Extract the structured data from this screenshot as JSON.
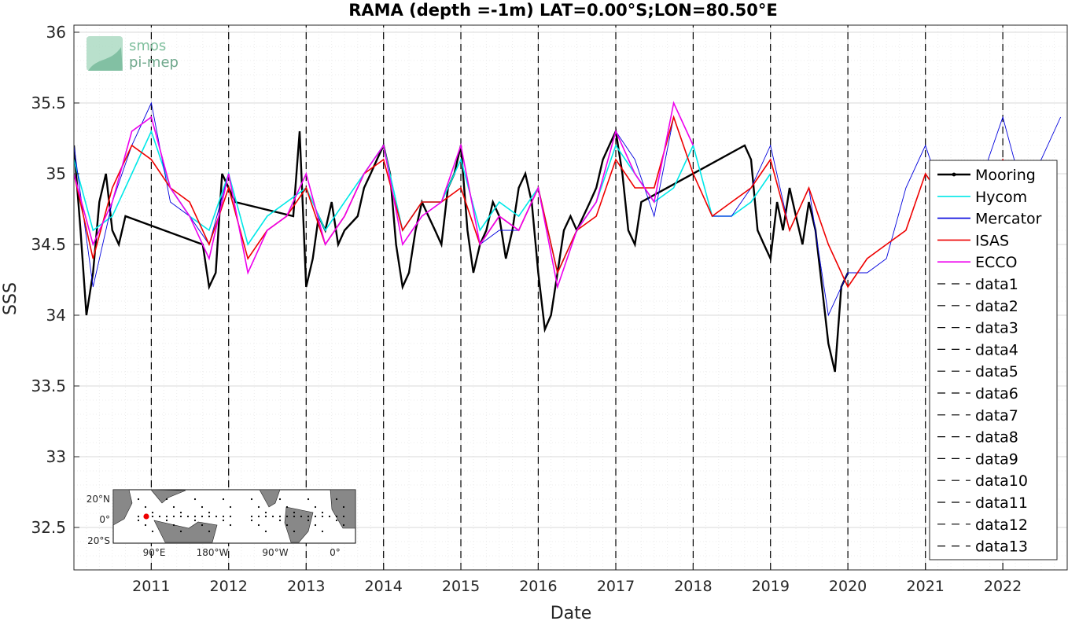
{
  "chart_data": {
    "type": "line",
    "title": "RAMA (depth =-1m) LAT=0.00°S;LON=80.50°E",
    "xlabel": "Date",
    "ylabel": "SSS",
    "xlim": [
      "2010-01-01",
      "2022-11-01"
    ],
    "ylim": [
      32.2,
      36.05
    ],
    "x_ticks": [
      "2011",
      "2012",
      "2013",
      "2014",
      "2015",
      "2016",
      "2017",
      "2018",
      "2019",
      "2020",
      "2021",
      "2022"
    ],
    "y_ticks": [
      "32.5",
      "33",
      "33.5",
      "34",
      "34.5",
      "35",
      "35.5",
      "36"
    ],
    "grid": true,
    "legend_position": "right",
    "series": [
      {
        "name": "Mooring",
        "color": "#000000",
        "x": [
          "2010-01-01",
          "2010-02-01",
          "2010-03-01",
          "2010-04-01",
          "2010-05-01",
          "2010-06-01",
          "2010-07-01",
          "2010-08-01",
          "2010-09-01",
          "2011-09-01",
          "2011-10-01",
          "2011-11-01",
          "2011-12-01",
          "2012-01-01",
          "2012-02-01",
          "2012-11-01",
          "2012-12-01",
          "2013-01-01",
          "2013-02-01",
          "2013-03-01",
          "2013-04-01",
          "2013-05-01",
          "2013-06-01",
          "2013-07-01",
          "2013-09-01",
          "2013-10-01",
          "2013-11-01",
          "2013-12-01",
          "2014-01-01",
          "2014-02-01",
          "2014-03-01",
          "2014-04-01",
          "2014-05-01",
          "2014-06-01",
          "2014-07-01",
          "2014-08-01",
          "2014-09-01",
          "2014-10-01",
          "2014-11-01",
          "2014-12-01",
          "2015-01-01",
          "2015-02-01",
          "2015-03-01",
          "2015-04-01",
          "2015-05-01",
          "2015-06-01",
          "2015-07-01",
          "2015-08-01",
          "2015-09-01",
          "2015-10-01",
          "2015-11-01",
          "2015-12-01",
          "2016-01-01",
          "2016-02-01",
          "2016-03-01",
          "2016-04-01",
          "2016-05-01",
          "2016-06-01",
          "2016-07-01",
          "2016-08-01",
          "2016-09-01",
          "2016-10-01",
          "2016-11-01",
          "2016-12-01",
          "2017-01-01",
          "2017-02-01",
          "2017-03-01",
          "2017-04-01",
          "2017-05-01",
          "2018-09-01",
          "2018-10-01",
          "2018-11-01",
          "2018-12-01",
          "2019-01-01",
          "2019-02-01",
          "2019-03-01",
          "2019-04-01",
          "2019-05-01",
          "2019-06-01",
          "2019-07-01",
          "2019-08-01",
          "2019-09-01",
          "2019-10-01",
          "2019-11-01",
          "2019-12-01",
          "2020-01-01"
        ],
        "y": [
          35.2,
          34.6,
          34.0,
          34.3,
          34.8,
          35.0,
          34.6,
          34.5,
          34.7,
          34.5,
          34.2,
          34.3,
          35.0,
          34.9,
          34.8,
          34.7,
          35.3,
          34.2,
          34.4,
          34.7,
          34.6,
          34.8,
          34.5,
          34.6,
          34.7,
          34.9,
          35.0,
          35.1,
          35.2,
          35.0,
          34.5,
          34.2,
          34.3,
          34.6,
          34.8,
          34.7,
          34.6,
          34.5,
          34.9,
          35.0,
          35.2,
          34.6,
          34.3,
          34.5,
          34.6,
          34.8,
          34.7,
          34.4,
          34.6,
          34.9,
          35.0,
          34.8,
          34.3,
          33.9,
          34.0,
          34.3,
          34.6,
          34.7,
          34.6,
          34.7,
          34.8,
          34.9,
          35.1,
          35.2,
          35.3,
          35.0,
          34.6,
          34.5,
          34.8,
          35.2,
          35.1,
          34.6,
          34.5,
          34.4,
          34.8,
          34.6,
          34.9,
          34.7,
          34.5,
          34.8,
          34.6,
          34.2,
          33.8,
          33.6,
          34.2,
          34.3
        ]
      },
      {
        "name": "Hycom",
        "color": "#00e8e8",
        "x": [
          "2010-01-01",
          "2010-04-01",
          "2010-07-01",
          "2010-10-01",
          "2011-01-01",
          "2011-04-01",
          "2011-07-01",
          "2011-10-01",
          "2012-01-01",
          "2012-04-01",
          "2012-07-01",
          "2012-10-01",
          "2013-01-01",
          "2013-04-01",
          "2013-07-01",
          "2013-10-01",
          "2014-01-01",
          "2014-04-01",
          "2014-07-01",
          "2014-10-01",
          "2015-01-01",
          "2015-04-01",
          "2015-07-01",
          "2015-10-01",
          "2016-01-01",
          "2016-04-01",
          "2016-07-01",
          "2016-10-01",
          "2017-01-01",
          "2017-04-01",
          "2017-07-01",
          "2017-10-01",
          "2018-01-01",
          "2018-04-01",
          "2018-07-01",
          "2018-10-01",
          "2019-01-01"
        ],
        "y": [
          35.1,
          34.6,
          34.7,
          35.0,
          35.3,
          34.9,
          34.7,
          34.6,
          35.0,
          34.5,
          34.7,
          34.8,
          34.9,
          34.6,
          34.8,
          35.0,
          35.2,
          34.6,
          34.8,
          34.8,
          35.1,
          34.6,
          34.8,
          34.7,
          34.9,
          34.3,
          34.6,
          34.8,
          35.2,
          35.0,
          34.8,
          34.9,
          35.2,
          34.7,
          34.7,
          34.8,
          35.0
        ]
      },
      {
        "name": "Mercator",
        "color": "#0000dd",
        "x": [
          "2010-01-01",
          "2010-04-01",
          "2010-07-01",
          "2010-10-01",
          "2011-01-01",
          "2011-04-01",
          "2011-07-01",
          "2011-10-01",
          "2012-01-01",
          "2012-04-01",
          "2012-07-01",
          "2012-10-01",
          "2013-01-01",
          "2013-04-01",
          "2013-07-01",
          "2013-10-01",
          "2014-01-01",
          "2014-04-01",
          "2014-07-01",
          "2014-10-01",
          "2015-01-01",
          "2015-04-01",
          "2015-07-01",
          "2015-10-01",
          "2016-01-01",
          "2016-04-01",
          "2016-07-01",
          "2016-10-01",
          "2017-01-01",
          "2017-04-01",
          "2017-07-01",
          "2017-10-01",
          "2018-01-01",
          "2018-04-01",
          "2018-07-01",
          "2018-10-01",
          "2019-01-01",
          "2019-04-01",
          "2019-07-01",
          "2019-10-01",
          "2020-01-01",
          "2020-04-01",
          "2020-07-01",
          "2020-10-01",
          "2021-01-01",
          "2021-04-01",
          "2021-07-01",
          "2021-10-01",
          "2022-01-01",
          "2022-04-01",
          "2022-07-01",
          "2022-10-01"
        ],
        "y": [
          35.2,
          34.2,
          34.8,
          35.2,
          35.5,
          34.8,
          34.7,
          34.5,
          35.0,
          34.3,
          34.6,
          34.7,
          34.9,
          34.5,
          34.7,
          35.0,
          35.2,
          34.5,
          34.7,
          34.8,
          35.2,
          34.5,
          34.6,
          34.6,
          34.9,
          34.2,
          34.6,
          34.8,
          35.3,
          35.1,
          34.7,
          35.4,
          35.0,
          34.7,
          34.7,
          34.9,
          35.2,
          34.6,
          34.9,
          34.0,
          34.3,
          34.3,
          34.4,
          34.9,
          35.2,
          34.8,
          34.9,
          35.0,
          35.4,
          34.9,
          35.1,
          35.4
        ]
      },
      {
        "name": "ISAS",
        "color": "#ee0000",
        "x": [
          "2010-01-01",
          "2010-04-01",
          "2010-07-01",
          "2010-10-01",
          "2011-01-01",
          "2011-04-01",
          "2011-07-01",
          "2011-10-01",
          "2012-01-01",
          "2012-04-01",
          "2012-07-01",
          "2012-10-01",
          "2013-01-01",
          "2013-04-01",
          "2013-07-01",
          "2013-10-01",
          "2014-01-01",
          "2014-04-01",
          "2014-07-01",
          "2014-10-01",
          "2015-01-01",
          "2015-04-01",
          "2015-07-01",
          "2015-10-01",
          "2016-01-01",
          "2016-04-01",
          "2016-07-01",
          "2016-10-01",
          "2017-01-01",
          "2017-04-01",
          "2017-07-01",
          "2017-10-01",
          "2018-01-01",
          "2018-04-01",
          "2018-07-01",
          "2018-10-01",
          "2019-01-01",
          "2019-04-01",
          "2019-07-01",
          "2019-10-01",
          "2020-01-01",
          "2020-04-01",
          "2020-07-01",
          "2020-10-01",
          "2021-01-01",
          "2021-04-01",
          "2021-07-01",
          "2021-10-01",
          "2022-01-01",
          "2022-04-01"
        ],
        "y": [
          35.0,
          34.4,
          34.9,
          35.2,
          35.1,
          34.9,
          34.8,
          34.5,
          34.9,
          34.4,
          34.6,
          34.7,
          34.9,
          34.5,
          34.7,
          35.0,
          35.1,
          34.6,
          34.8,
          34.8,
          34.9,
          34.5,
          34.7,
          34.6,
          34.9,
          34.3,
          34.6,
          34.7,
          35.1,
          34.9,
          34.9,
          35.4,
          35.0,
          34.7,
          34.8,
          34.9,
          35.1,
          34.6,
          34.9,
          34.5,
          34.2,
          34.4,
          34.5,
          34.6,
          35.0,
          34.8,
          34.8,
          34.9,
          35.1,
          34.9
        ]
      },
      {
        "name": "ECCO",
        "color": "#ee00ee",
        "x": [
          "2010-01-01",
          "2010-04-01",
          "2010-07-01",
          "2010-10-01",
          "2011-01-01",
          "2011-04-01",
          "2011-07-01",
          "2011-10-01",
          "2012-01-01",
          "2012-04-01",
          "2012-07-01",
          "2012-10-01",
          "2013-01-01",
          "2013-04-01",
          "2013-07-01",
          "2013-10-01",
          "2014-01-01",
          "2014-04-01",
          "2014-07-01",
          "2014-10-01",
          "2015-01-01",
          "2015-04-01",
          "2015-07-01",
          "2015-10-01",
          "2016-01-01",
          "2016-04-01",
          "2016-07-01",
          "2016-10-01",
          "2017-01-01",
          "2017-04-01",
          "2017-07-01",
          "2017-10-01",
          "2018-01-01"
        ],
        "y": [
          35.0,
          34.5,
          34.8,
          35.3,
          35.4,
          34.9,
          34.7,
          34.4,
          35.0,
          34.3,
          34.6,
          34.7,
          35.0,
          34.5,
          34.7,
          35.0,
          35.2,
          34.5,
          34.7,
          34.8,
          35.2,
          34.5,
          34.7,
          34.6,
          34.9,
          34.2,
          34.6,
          34.8,
          35.3,
          35.0,
          34.8,
          35.5,
          35.2
        ]
      },
      {
        "name": "data1",
        "color": "#000000",
        "x": [
          "2011-01-01",
          "2011-01-01"
        ],
        "y": [
          32.2,
          36.05
        ]
      },
      {
        "name": "data2",
        "color": "#000000",
        "x": [
          "2012-01-01",
          "2012-01-01"
        ],
        "y": [
          32.2,
          36.05
        ]
      },
      {
        "name": "data3",
        "color": "#000000",
        "x": [
          "2013-01-01",
          "2013-01-01"
        ],
        "y": [
          32.2,
          36.05
        ]
      },
      {
        "name": "data4",
        "color": "#000000",
        "x": [
          "2014-01-01",
          "2014-01-01"
        ],
        "y": [
          32.2,
          36.05
        ]
      },
      {
        "name": "data5",
        "color": "#000000",
        "x": [
          "2015-01-01",
          "2015-01-01"
        ],
        "y": [
          32.2,
          36.05
        ]
      },
      {
        "name": "data6",
        "color": "#000000",
        "x": [
          "2016-01-01",
          "2016-01-01"
        ],
        "y": [
          32.2,
          36.05
        ]
      },
      {
        "name": "data7",
        "color": "#000000",
        "x": [
          "2017-01-01",
          "2017-01-01"
        ],
        "y": [
          32.2,
          36.05
        ]
      },
      {
        "name": "data8",
        "color": "#000000",
        "x": [
          "2018-01-01",
          "2018-01-01"
        ],
        "y": [
          32.2,
          36.05
        ]
      },
      {
        "name": "data9",
        "color": "#000000",
        "x": [
          "2019-01-01",
          "2019-01-01"
        ],
        "y": [
          32.2,
          36.05
        ]
      },
      {
        "name": "data10",
        "color": "#000000",
        "x": [
          "2020-01-01",
          "2020-01-01"
        ],
        "y": [
          32.2,
          36.05
        ]
      },
      {
        "name": "data11",
        "color": "#000000",
        "x": [
          "2021-01-01",
          "2021-01-01"
        ],
        "y": [
          32.2,
          36.05
        ]
      },
      {
        "name": "data12",
        "color": "#000000",
        "x": [
          "2022-01-01",
          "2022-01-01"
        ],
        "y": [
          32.2,
          36.05
        ]
      },
      {
        "name": "data13",
        "color": "#000000",
        "x": [
          "2023-01-01",
          "2023-01-01"
        ],
        "y": [
          32.2,
          36.05
        ]
      }
    ]
  },
  "logo": {
    "line1": "smos",
    "line2": "pi-mep"
  },
  "inset_map": {
    "y_ticks": [
      "20°N",
      "0°",
      "20°S"
    ],
    "x_ticks": [
      "90°E",
      "180°W",
      "90°W",
      "0°"
    ],
    "marker_color": "#ee0000"
  }
}
